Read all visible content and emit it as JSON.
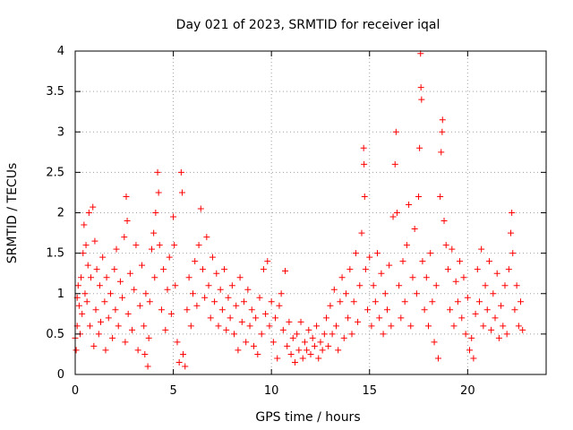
{
  "chart_data": {
    "type": "scatter",
    "title": "Day 021 of 2023, SRMTID for receiver iqal",
    "xlabel": "GPS time / hours",
    "ylabel": "SRMTID / TECUs",
    "xlim": [
      0,
      24
    ],
    "ylim": [
      0,
      4
    ],
    "xticks": [
      0,
      5,
      10,
      15,
      20
    ],
    "xtick_labels": [
      "0",
      "5",
      "10",
      "15",
      "20"
    ],
    "yticks": [
      0,
      0.5,
      1,
      1.5,
      2,
      2.5,
      3,
      3.5,
      4
    ],
    "ytick_labels": [
      "0",
      "0.5",
      "1",
      "1.5",
      "2",
      "2.5",
      "3",
      "3.5",
      "4"
    ],
    "grid": true,
    "marker": "+",
    "color": "#ff0000",
    "series": [
      {
        "name": "SRMTID",
        "points": [
          [
            0.0,
            0.45
          ],
          [
            0.05,
            0.3
          ],
          [
            0.1,
            0.95
          ],
          [
            0.1,
            0.6
          ],
          [
            0.15,
            1.1
          ],
          [
            0.2,
            0.85
          ],
          [
            0.25,
            0.5
          ],
          [
            0.3,
            1.2
          ],
          [
            0.35,
            0.75
          ],
          [
            0.4,
            1.5
          ],
          [
            0.45,
            1.85
          ],
          [
            0.5,
            1.0
          ],
          [
            0.55,
            1.6
          ],
          [
            0.6,
            0.9
          ],
          [
            0.65,
            1.35
          ],
          [
            0.7,
            2.0
          ],
          [
            0.75,
            0.6
          ],
          [
            0.8,
            1.2
          ],
          [
            0.9,
            2.07
          ],
          [
            0.95,
            0.35
          ],
          [
            1.0,
            1.65
          ],
          [
            1.05,
            0.8
          ],
          [
            1.1,
            1.3
          ],
          [
            1.2,
            0.5
          ],
          [
            1.25,
            1.1
          ],
          [
            1.3,
            0.65
          ],
          [
            1.4,
            1.45
          ],
          [
            1.5,
            0.9
          ],
          [
            1.55,
            0.3
          ],
          [
            1.6,
            1.2
          ],
          [
            1.7,
            0.7
          ],
          [
            1.8,
            1.0
          ],
          [
            1.9,
            0.45
          ],
          [
            2.0,
            1.3
          ],
          [
            2.05,
            0.8
          ],
          [
            2.1,
            1.55
          ],
          [
            2.2,
            0.6
          ],
          [
            2.3,
            1.15
          ],
          [
            2.4,
            0.95
          ],
          [
            2.5,
            1.7
          ],
          [
            2.55,
            0.4
          ],
          [
            2.6,
            2.2
          ],
          [
            2.65,
            1.9
          ],
          [
            2.7,
            0.75
          ],
          [
            2.8,
            1.25
          ],
          [
            2.9,
            0.55
          ],
          [
            3.0,
            1.05
          ],
          [
            3.1,
            1.6
          ],
          [
            3.2,
            0.3
          ],
          [
            3.3,
            0.85
          ],
          [
            3.4,
            1.35
          ],
          [
            3.5,
            0.6
          ],
          [
            3.55,
            0.25
          ],
          [
            3.6,
            1.0
          ],
          [
            3.7,
            0.1
          ],
          [
            3.75,
            0.45
          ],
          [
            3.8,
            0.9
          ],
          [
            3.9,
            1.55
          ],
          [
            4.0,
            1.75
          ],
          [
            4.05,
            1.2
          ],
          [
            4.1,
            2.0
          ],
          [
            4.2,
            2.5
          ],
          [
            4.25,
            2.25
          ],
          [
            4.3,
            1.6
          ],
          [
            4.4,
            0.8
          ],
          [
            4.5,
            1.3
          ],
          [
            4.6,
            0.55
          ],
          [
            4.7,
            1.05
          ],
          [
            4.8,
            1.45
          ],
          [
            4.9,
            0.75
          ],
          [
            5.0,
            1.95
          ],
          [
            5.05,
            1.6
          ],
          [
            5.1,
            1.1
          ],
          [
            5.2,
            0.4
          ],
          [
            5.3,
            0.15
          ],
          [
            5.4,
            2.5
          ],
          [
            5.45,
            2.25
          ],
          [
            5.5,
            0.25
          ],
          [
            5.6,
            0.1
          ],
          [
            5.7,
            0.8
          ],
          [
            5.8,
            1.2
          ],
          [
            5.9,
            0.6
          ],
          [
            6.0,
            1.0
          ],
          [
            6.1,
            1.4
          ],
          [
            6.2,
            0.85
          ],
          [
            6.3,
            1.6
          ],
          [
            6.4,
            2.05
          ],
          [
            6.5,
            1.3
          ],
          [
            6.6,
            0.95
          ],
          [
            6.7,
            1.7
          ],
          [
            6.8,
            1.1
          ],
          [
            6.9,
            0.7
          ],
          [
            7.0,
            1.45
          ],
          [
            7.1,
            0.9
          ],
          [
            7.2,
            1.25
          ],
          [
            7.3,
            0.6
          ],
          [
            7.4,
            1.05
          ],
          [
            7.5,
            0.8
          ],
          [
            7.6,
            1.3
          ],
          [
            7.7,
            0.55
          ],
          [
            7.8,
            0.95
          ],
          [
            7.9,
            0.7
          ],
          [
            8.0,
            1.1
          ],
          [
            8.1,
            0.5
          ],
          [
            8.2,
            0.85
          ],
          [
            8.3,
            0.3
          ],
          [
            8.4,
            1.2
          ],
          [
            8.5,
            0.65
          ],
          [
            8.6,
            0.9
          ],
          [
            8.7,
            0.4
          ],
          [
            8.8,
            1.05
          ],
          [
            8.9,
            0.6
          ],
          [
            9.0,
            0.8
          ],
          [
            9.1,
            0.35
          ],
          [
            9.2,
            0.7
          ],
          [
            9.3,
            0.25
          ],
          [
            9.4,
            0.95
          ],
          [
            9.5,
            0.5
          ],
          [
            9.6,
            1.3
          ],
          [
            9.7,
            0.75
          ],
          [
            9.8,
            1.4
          ],
          [
            9.9,
            0.6
          ],
          [
            10.0,
            0.9
          ],
          [
            10.1,
            0.4
          ],
          [
            10.2,
            0.7
          ],
          [
            10.3,
            0.2
          ],
          [
            10.4,
            0.85
          ],
          [
            10.5,
            1.0
          ],
          [
            10.6,
            0.55
          ],
          [
            10.7,
            1.28
          ],
          [
            10.8,
            0.35
          ],
          [
            10.9,
            0.65
          ],
          [
            11.0,
            0.25
          ],
          [
            11.1,
            0.45
          ],
          [
            11.2,
            0.15
          ],
          [
            11.3,
            0.5
          ],
          [
            11.4,
            0.3
          ],
          [
            11.5,
            0.65
          ],
          [
            11.6,
            0.2
          ],
          [
            11.7,
            0.4
          ],
          [
            11.8,
            0.3
          ],
          [
            11.9,
            0.55
          ],
          [
            12.0,
            0.25
          ],
          [
            12.1,
            0.45
          ],
          [
            12.2,
            0.35
          ],
          [
            12.3,
            0.6
          ],
          [
            12.4,
            0.2
          ],
          [
            12.5,
            0.4
          ],
          [
            12.6,
            0.3
          ],
          [
            12.7,
            0.5
          ],
          [
            12.8,
            0.7
          ],
          [
            12.9,
            0.35
          ],
          [
            13.0,
            0.85
          ],
          [
            13.1,
            0.5
          ],
          [
            13.2,
            1.05
          ],
          [
            13.3,
            0.6
          ],
          [
            13.4,
            0.3
          ],
          [
            13.5,
            0.9
          ],
          [
            13.6,
            1.2
          ],
          [
            13.7,
            0.45
          ],
          [
            13.8,
            1.0
          ],
          [
            13.9,
            0.7
          ],
          [
            14.0,
            1.3
          ],
          [
            14.1,
            0.5
          ],
          [
            14.2,
            0.9
          ],
          [
            14.3,
            1.5
          ],
          [
            14.4,
            0.65
          ],
          [
            14.5,
            1.1
          ],
          [
            14.6,
            1.75
          ],
          [
            14.7,
            2.8
          ],
          [
            14.72,
            2.6
          ],
          [
            14.75,
            2.2
          ],
          [
            14.8,
            1.3
          ],
          [
            14.9,
            0.8
          ],
          [
            15.0,
            1.45
          ],
          [
            15.1,
            0.6
          ],
          [
            15.2,
            1.1
          ],
          [
            15.3,
            0.9
          ],
          [
            15.4,
            1.5
          ],
          [
            15.5,
            0.7
          ],
          [
            15.6,
            1.25
          ],
          [
            15.7,
            0.5
          ],
          [
            15.8,
            1.0
          ],
          [
            15.9,
            0.8
          ],
          [
            16.0,
            1.35
          ],
          [
            16.1,
            0.6
          ],
          [
            16.2,
            1.95
          ],
          [
            16.3,
            2.6
          ],
          [
            16.35,
            3.0
          ],
          [
            16.4,
            2.0
          ],
          [
            16.5,
            1.1
          ],
          [
            16.6,
            0.7
          ],
          [
            16.7,
            1.4
          ],
          [
            16.8,
            0.9
          ],
          [
            16.9,
            1.6
          ],
          [
            17.0,
            2.1
          ],
          [
            17.1,
            0.6
          ],
          [
            17.2,
            1.2
          ],
          [
            17.3,
            1.8
          ],
          [
            17.4,
            1.0
          ],
          [
            17.5,
            2.2
          ],
          [
            17.55,
            2.8
          ],
          [
            17.6,
            3.97
          ],
          [
            17.62,
            3.55
          ],
          [
            17.65,
            3.4
          ],
          [
            17.7,
            1.4
          ],
          [
            17.8,
            0.8
          ],
          [
            17.9,
            1.2
          ],
          [
            18.0,
            0.6
          ],
          [
            18.1,
            1.5
          ],
          [
            18.2,
            0.9
          ],
          [
            18.3,
            0.4
          ],
          [
            18.4,
            1.1
          ],
          [
            18.5,
            0.2
          ],
          [
            18.6,
            2.2
          ],
          [
            18.65,
            2.75
          ],
          [
            18.7,
            3.0
          ],
          [
            18.72,
            3.15
          ],
          [
            18.8,
            1.9
          ],
          [
            18.9,
            1.6
          ],
          [
            19.0,
            1.3
          ],
          [
            19.1,
            0.8
          ],
          [
            19.2,
            1.55
          ],
          [
            19.3,
            0.6
          ],
          [
            19.4,
            1.15
          ],
          [
            19.5,
            0.9
          ],
          [
            19.6,
            1.4
          ],
          [
            19.7,
            0.7
          ],
          [
            19.8,
            1.2
          ],
          [
            19.9,
            0.5
          ],
          [
            20.0,
            0.95
          ],
          [
            20.1,
            0.3
          ],
          [
            20.2,
            0.45
          ],
          [
            20.3,
            0.2
          ],
          [
            20.4,
            0.75
          ],
          [
            20.5,
            1.3
          ],
          [
            20.6,
            0.9
          ],
          [
            20.7,
            1.55
          ],
          [
            20.8,
            0.6
          ],
          [
            20.9,
            1.1
          ],
          [
            21.0,
            0.8
          ],
          [
            21.1,
            1.4
          ],
          [
            21.2,
            0.55
          ],
          [
            21.3,
            1.0
          ],
          [
            21.4,
            0.7
          ],
          [
            21.5,
            1.25
          ],
          [
            21.6,
            0.45
          ],
          [
            21.7,
            0.85
          ],
          [
            21.8,
            0.6
          ],
          [
            21.9,
            1.1
          ],
          [
            22.0,
            0.5
          ],
          [
            22.1,
            1.3
          ],
          [
            22.2,
            1.75
          ],
          [
            22.25,
            2.0
          ],
          [
            22.3,
            1.5
          ],
          [
            22.4,
            0.8
          ],
          [
            22.5,
            1.1
          ],
          [
            22.6,
            0.6
          ],
          [
            22.7,
            0.9
          ],
          [
            22.8,
            0.55
          ]
        ]
      }
    ]
  }
}
